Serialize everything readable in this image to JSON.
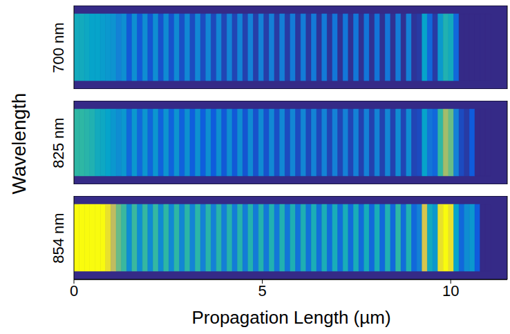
{
  "chart_data": {
    "type": "heatmap",
    "x_label": "Propagation Length (µm)",
    "y_label": "Wavelength",
    "xlim": [
      0,
      11.5
    ],
    "xticks": [
      0,
      5,
      10
    ],
    "ylim": [
      0,
      1
    ],
    "tick_labels": "x",
    "band": [
      0.1,
      0.9
    ],
    "zlim": [
      0,
      1
    ],
    "x": [
      0.07,
      0.21,
      0.35,
      0.49,
      0.63,
      0.77,
      0.91,
      1.05,
      1.19,
      1.33,
      1.47,
      1.61,
      1.75,
      1.89,
      2.03,
      2.17,
      2.31,
      2.45,
      2.59,
      2.73,
      2.87,
      3.01,
      3.15,
      3.29,
      3.43,
      3.57,
      3.71,
      3.85,
      3.99,
      4.13,
      4.27,
      4.41,
      4.55,
      4.69,
      4.83,
      4.97,
      5.11,
      5.25,
      5.39,
      5.53,
      5.67,
      5.81,
      5.95,
      6.09,
      6.23,
      6.37,
      6.51,
      6.65,
      6.79,
      6.93,
      7.07,
      7.21,
      7.35,
      7.49,
      7.63,
      7.77,
      7.91,
      8.05,
      8.19,
      8.33,
      8.47,
      8.61,
      8.75,
      8.89,
      9.03,
      9.17,
      9.31,
      9.45,
      9.59,
      9.73,
      9.87,
      10.01,
      10.15,
      10.29,
      10.43,
      10.57,
      10.71,
      10.85,
      10.99
    ],
    "panels": [
      {
        "title": "700 nm",
        "values": [
          0.5,
          0.5,
          0.48,
          0.45,
          0.45,
          0.42,
          0.4,
          0.38,
          0.3,
          0.36,
          0.14,
          0.36,
          0.14,
          0.35,
          0.13,
          0.35,
          0.12,
          0.34,
          0.12,
          0.34,
          0.11,
          0.33,
          0.1,
          0.33,
          0.1,
          0.32,
          0.09,
          0.32,
          0.08,
          0.31,
          0.08,
          0.31,
          0.07,
          0.3,
          0.06,
          0.3,
          0.06,
          0.29,
          0.05,
          0.29,
          0.05,
          0.28,
          0.04,
          0.28,
          0.04,
          0.27,
          0.03,
          0.27,
          0.03,
          0.26,
          0.02,
          0.26,
          0.02,
          0.26,
          0.02,
          0.25,
          0.02,
          0.25,
          0.02,
          0.26,
          0.02,
          0.28,
          0.02,
          0.3,
          0.03,
          0.05,
          0.45,
          0.2,
          0.05,
          0.4,
          0.55,
          0.5,
          0.2,
          0,
          0,
          0,
          0,
          0,
          0
        ]
      },
      {
        "title": "825 nm",
        "values": [
          0.6,
          0.6,
          0.58,
          0.55,
          0.5,
          0.48,
          0.45,
          0.4,
          0.35,
          0.4,
          0.2,
          0.4,
          0.2,
          0.39,
          0.19,
          0.39,
          0.18,
          0.38,
          0.18,
          0.38,
          0.17,
          0.37,
          0.16,
          0.37,
          0.16,
          0.36,
          0.15,
          0.36,
          0.14,
          0.35,
          0.14,
          0.35,
          0.13,
          0.34,
          0.12,
          0.34,
          0.12,
          0.33,
          0.11,
          0.33,
          0.1,
          0.32,
          0.1,
          0.32,
          0.09,
          0.31,
          0.09,
          0.31,
          0.08,
          0.3,
          0.08,
          0.3,
          0.08,
          0.3,
          0.07,
          0.3,
          0.07,
          0.31,
          0.07,
          0.32,
          0.07,
          0.35,
          0.08,
          0.35,
          0.08,
          0.1,
          0.45,
          0.25,
          0.2,
          0.6,
          0.8,
          0.7,
          0.3,
          0.1,
          0.05,
          0.15,
          0,
          0,
          0
        ]
      },
      {
        "title": "854 nm",
        "values": [
          1,
          1,
          1,
          1,
          1,
          1,
          0.95,
          0.85,
          0.7,
          0.62,
          0.35,
          0.62,
          0.35,
          0.61,
          0.34,
          0.61,
          0.34,
          0.6,
          0.33,
          0.6,
          0.32,
          0.59,
          0.31,
          0.59,
          0.3,
          0.58,
          0.3,
          0.58,
          0.29,
          0.57,
          0.28,
          0.57,
          0.28,
          0.56,
          0.27,
          0.56,
          0.26,
          0.55,
          0.26,
          0.55,
          0.25,
          0.54,
          0.24,
          0.54,
          0.24,
          0.53,
          0.23,
          0.53,
          0.22,
          0.52,
          0.22,
          0.52,
          0.21,
          0.52,
          0.21,
          0.51,
          0.2,
          0.52,
          0.2,
          0.55,
          0.2,
          0.6,
          0.22,
          0.55,
          0.2,
          0.3,
          0.9,
          0.5,
          0.4,
          0.95,
          1,
          0.95,
          0.45,
          0.2,
          0.35,
          0.4,
          0.15,
          0,
          0
        ]
      }
    ]
  }
}
